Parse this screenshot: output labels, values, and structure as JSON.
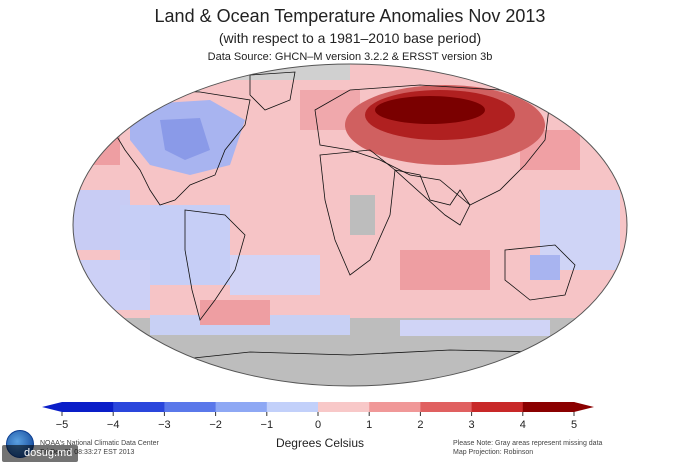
{
  "title": "Land & Ocean Temperature Anomalies Nov 2013",
  "subtitle": "(with respect to a 1981–2010 base period)",
  "data_source": "Data Source: GHCN–M version 3.2.2 & ERSST version 3b",
  "colorbar": {
    "ticks": [
      "−5",
      "−4",
      "−3",
      "−2",
      "−1",
      "0",
      "1",
      "2",
      "3",
      "4",
      "5"
    ],
    "unit_label": "Degrees Celsius",
    "min": -5,
    "max": 5,
    "colors": [
      "#0a1ec8",
      "#2a46dc",
      "#5a78ea",
      "#8ea8f4",
      "#c2d0fa",
      "#ffffff",
      "#f8c8c8",
      "#f09898",
      "#e06060",
      "#c82828",
      "#8a0000"
    ]
  },
  "footer_left": [
    "NOAA's National Climatic Data Center",
    "Fri Dec 20 08:33:27 EST 2013"
  ],
  "footer_right": [
    "Please Note: Gray areas represent missing data",
    "Map Projection: Robinson"
  ],
  "watermark": "dosug.md",
  "colors": {
    "ocean_base": "#f6c4c6",
    "cold_anomaly": "#a8b4f0",
    "strong_warm": "#7a0000",
    "missing": "#bdbdbd",
    "coastline": "#111111"
  }
}
